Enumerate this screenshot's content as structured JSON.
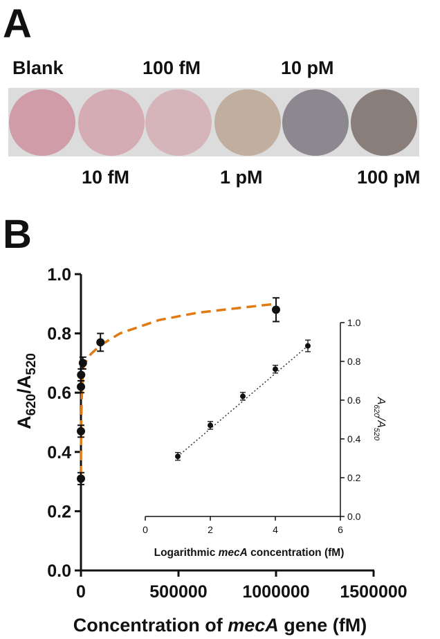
{
  "panel_a": {
    "letter": "A",
    "labels_top": [
      "Blank",
      "100 fM",
      "10 pM"
    ],
    "labels_bottom": [
      "10 fM",
      "1 pM",
      "100 pM"
    ],
    "wells": [
      {
        "label": "Blank",
        "color": "#cf9ca7"
      },
      {
        "label": "10 fM",
        "color": "#d6acb4"
      },
      {
        "label": "100 fM",
        "color": "#d5b5ba"
      },
      {
        "label": "1 pM",
        "color": "#c0ae9f"
      },
      {
        "label": "10 pM",
        "color": "#8d888f"
      },
      {
        "label": "100 pM",
        "color": "#8a7e7b"
      }
    ]
  },
  "panel_b": {
    "letter": "B"
  },
  "chart_data": [
    {
      "type": "scatter",
      "title": "",
      "xlabel": "Concentration of mecA gene (fM)",
      "xlabel_parts": [
        "Concentration of ",
        "mecA",
        " gene (fM)"
      ],
      "ylabel": "A620/A520",
      "ylabel_parts": [
        "A",
        "620",
        "/A",
        "520"
      ],
      "xlim": [
        0,
        1500000
      ],
      "ylim": [
        0.0,
        1.0
      ],
      "xticks": [
        0,
        500000,
        1000000,
        1500000
      ],
      "xtick_labels": [
        "0",
        "500000",
        "1000000",
        "1500000"
      ],
      "yticks": [
        0.0,
        0.2,
        0.4,
        0.6,
        0.8,
        1.0
      ],
      "ytick_labels": [
        "0.0",
        "0.2",
        "0.4",
        "0.6",
        "0.8",
        "1.0"
      ],
      "series": [
        {
          "name": "measured",
          "x": [
            0,
            10,
            100,
            1000,
            10000,
            100000,
            1000000
          ],
          "y": [
            0.31,
            0.47,
            0.62,
            0.66,
            0.7,
            0.77,
            0.88
          ],
          "err": [
            0.02,
            0.02,
            0.02,
            0.02,
            0.02,
            0.03,
            0.04
          ]
        },
        {
          "name": "fit",
          "style": "dashed",
          "color": "#e07b14",
          "x": [
            0,
            5000,
            20000,
            50000,
            100000,
            200000,
            400000,
            600000,
            800000,
            1000000
          ],
          "y": [
            0.32,
            0.66,
            0.7,
            0.73,
            0.76,
            0.8,
            0.845,
            0.87,
            0.885,
            0.9
          ]
        }
      ]
    },
    {
      "type": "scatter",
      "title": "",
      "xlabel": "Logarithmic mecA concentration (fM)",
      "xlabel_parts": [
        "Logarithmic ",
        "mecA",
        " concentration (fM)"
      ],
      "ylabel": "A620/A520",
      "ylabel_parts": [
        "A",
        "620",
        "/A",
        "520"
      ],
      "xlim": [
        0,
        6
      ],
      "ylim": [
        0.0,
        1.0
      ],
      "xticks": [
        0,
        2,
        4,
        6
      ],
      "xtick_labels": [
        "0",
        "2",
        "4",
        "6"
      ],
      "yticks": [
        0.0,
        0.2,
        0.4,
        0.6,
        0.8,
        1.0
      ],
      "ytick_labels": [
        "0.0",
        "0.2",
        "0.4",
        "0.6",
        "0.8",
        "1.0"
      ],
      "series": [
        {
          "name": "measured",
          "x": [
            1,
            2,
            3,
            4,
            5
          ],
          "y": [
            0.31,
            0.47,
            0.62,
            0.76,
            0.88
          ],
          "err": [
            0.02,
            0.02,
            0.02,
            0.02,
            0.03
          ]
        },
        {
          "name": "linear fit",
          "style": "dotted",
          "color": "#333333",
          "x": [
            1,
            5
          ],
          "y": [
            0.31,
            0.88
          ]
        }
      ]
    }
  ]
}
